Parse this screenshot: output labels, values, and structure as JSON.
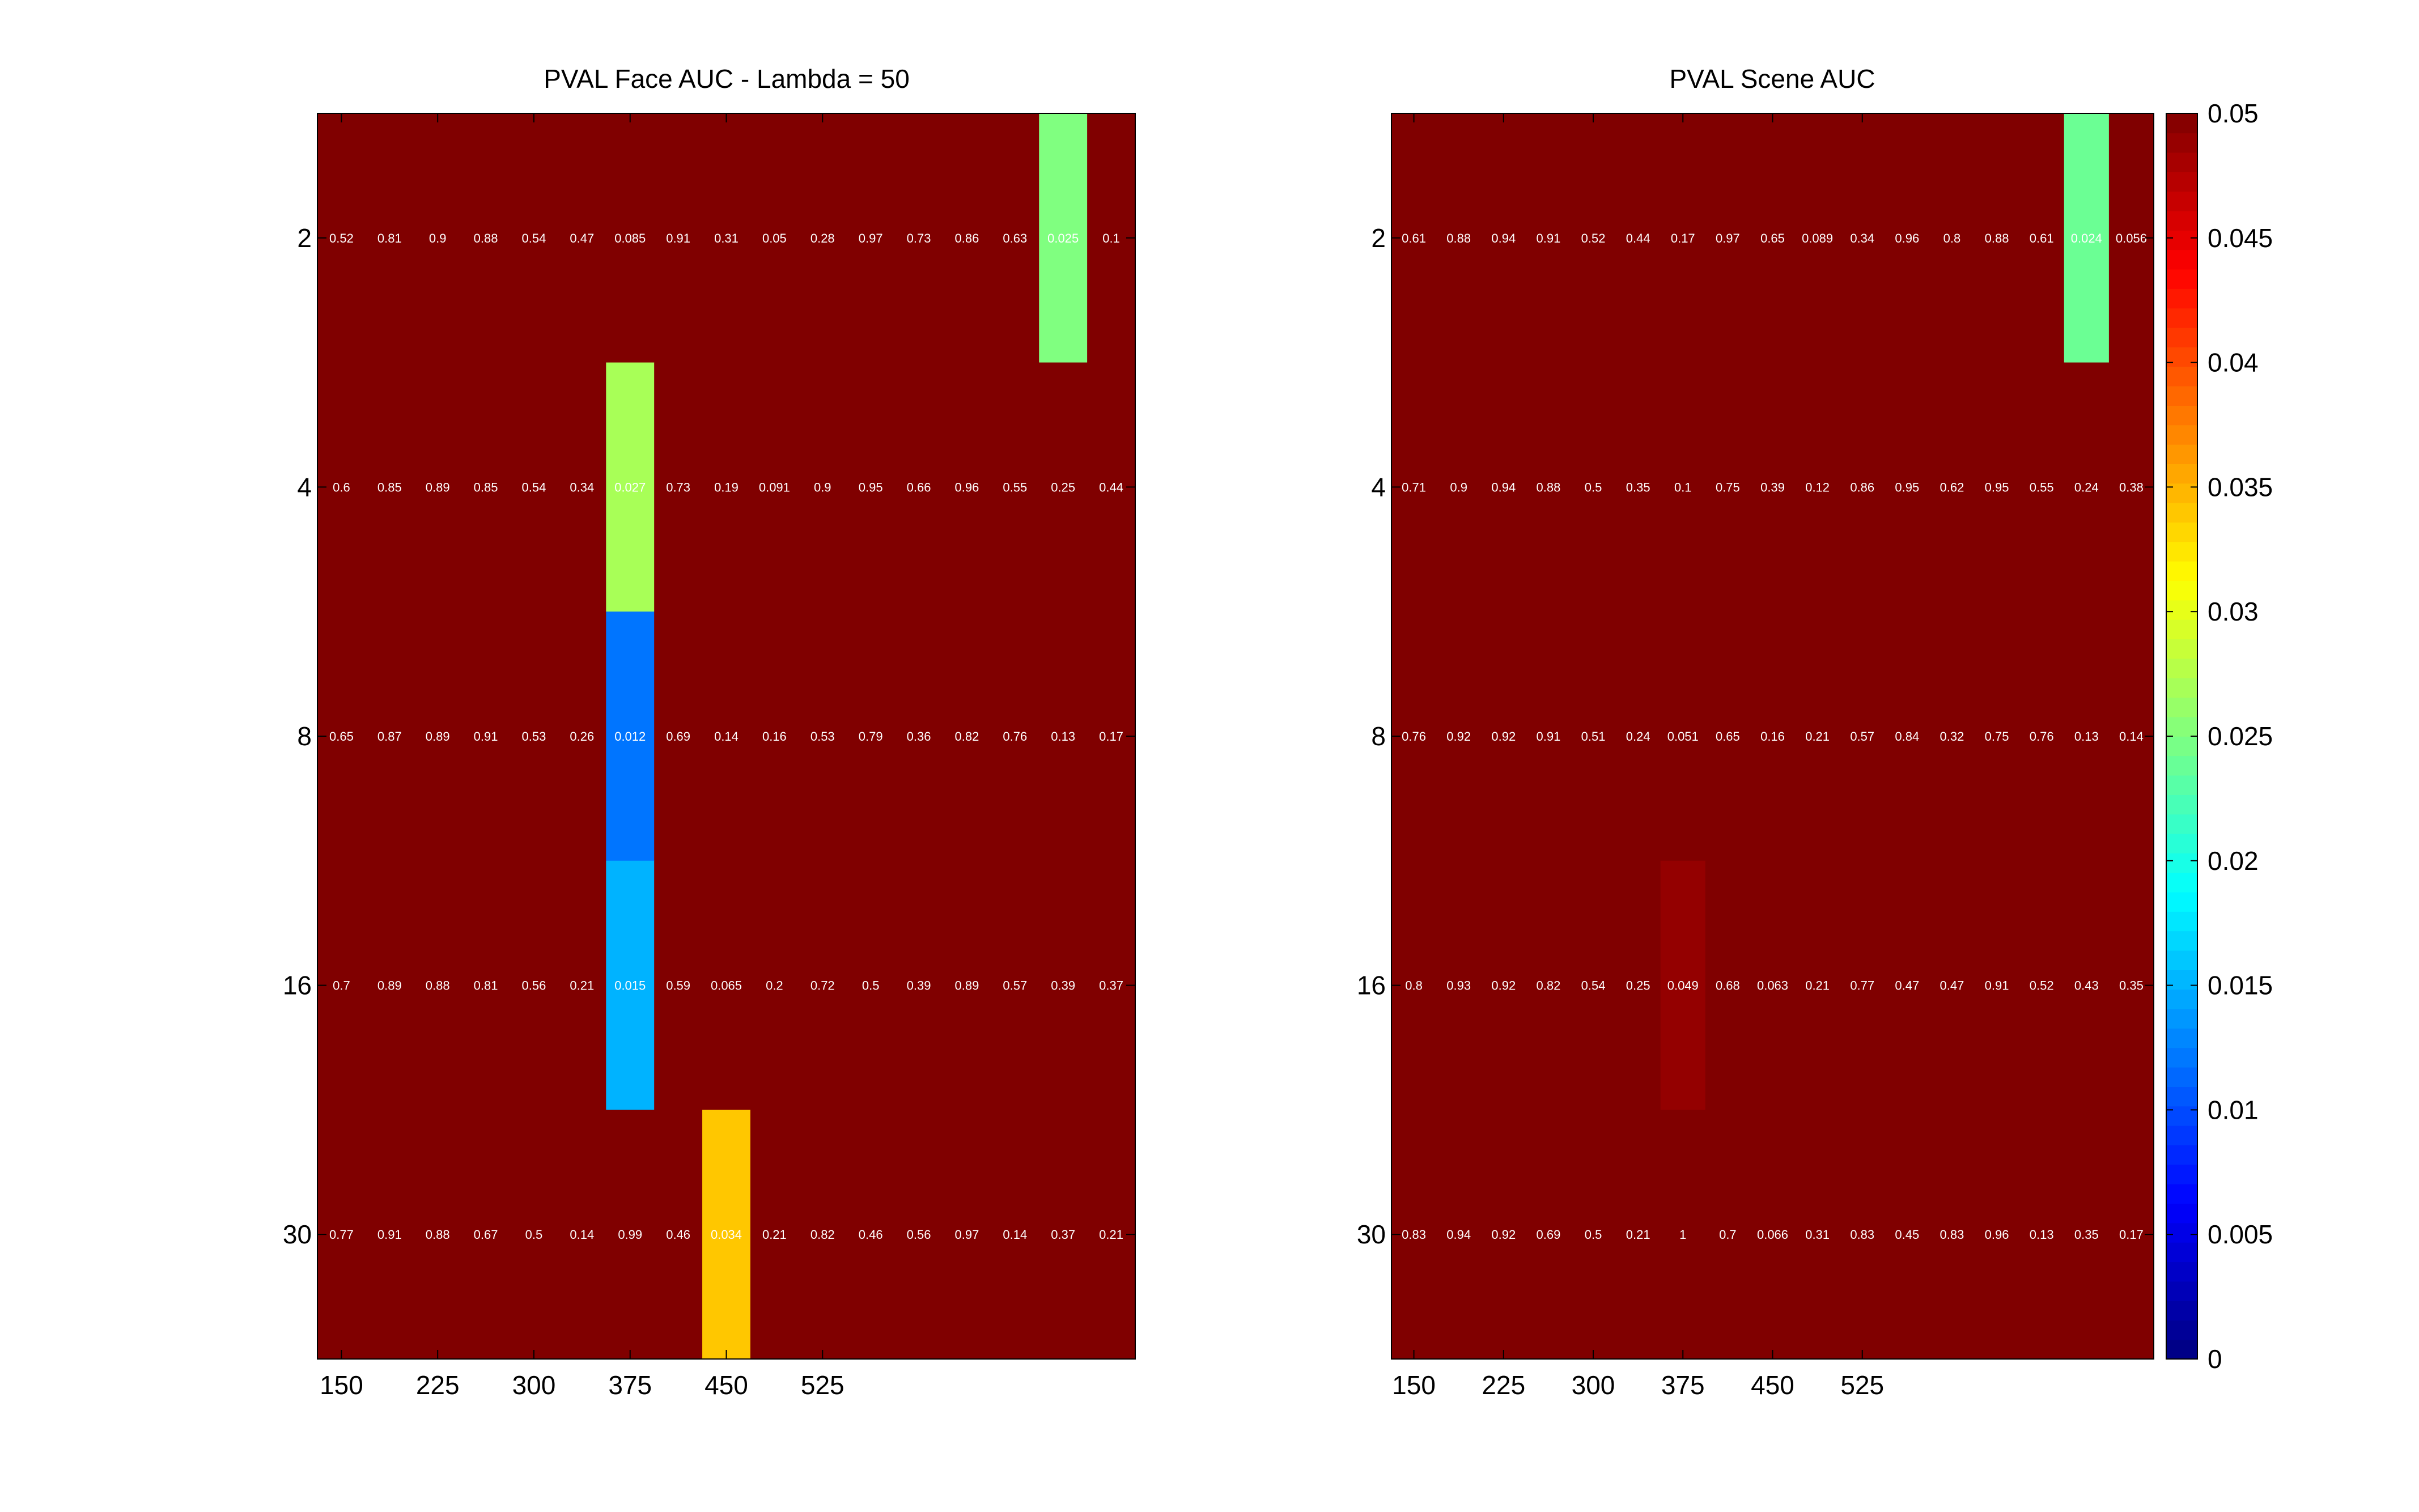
{
  "chart_data": [
    {
      "type": "heatmap",
      "title": "PVAL Face AUC - Lambda = 50",
      "x": [
        150,
        187.5,
        225,
        262.5,
        300,
        337.5,
        375,
        412.5,
        450,
        487.5,
        525,
        562.5,
        600,
        637.5,
        675,
        712.5,
        750
      ],
      "xticks": [
        "150",
        "225",
        "300",
        "375",
        "450",
        "525"
      ],
      "y": [
        "2",
        "4",
        "8",
        "16",
        "30"
      ],
      "value_clip": 0.05,
      "values": [
        [
          0.52,
          0.81,
          0.9,
          0.88,
          0.54,
          0.47,
          0.085,
          0.91,
          0.31,
          0.05,
          0.28,
          0.97,
          0.73,
          0.86,
          0.63,
          0.025,
          0.1
        ],
        [
          0.6,
          0.85,
          0.89,
          0.85,
          0.54,
          0.34,
          0.027,
          0.73,
          0.19,
          0.091,
          0.9,
          0.95,
          0.66,
          0.96,
          0.55,
          0.25,
          0.44
        ],
        [
          0.65,
          0.87,
          0.89,
          0.91,
          0.53,
          0.26,
          0.012,
          0.69,
          0.14,
          0.16,
          0.53,
          0.79,
          0.36,
          0.82,
          0.76,
          0.13,
          0.17
        ],
        [
          0.7,
          0.89,
          0.88,
          0.81,
          0.56,
          0.21,
          0.015,
          0.59,
          0.065,
          0.2,
          0.72,
          0.5,
          0.39,
          0.89,
          0.57,
          0.39,
          0.37
        ],
        [
          0.77,
          0.91,
          0.88,
          0.67,
          0.5,
          0.14,
          0.99,
          0.46,
          0.034,
          0.21,
          0.82,
          0.46,
          0.56,
          0.97,
          0.14,
          0.37,
          0.21
        ]
      ]
    },
    {
      "type": "heatmap",
      "title": "PVAL Scene AUC",
      "x": [
        150,
        187.5,
        225,
        262.5,
        300,
        337.5,
        375,
        412.5,
        450,
        487.5,
        525,
        562.5,
        600,
        637.5,
        675,
        712.5,
        750
      ],
      "xticks": [
        "150",
        "225",
        "300",
        "375",
        "450",
        "525"
      ],
      "y": [
        "2",
        "4",
        "8",
        "16",
        "30"
      ],
      "value_clip": 0.05,
      "values": [
        [
          0.61,
          0.88,
          0.94,
          0.91,
          0.52,
          0.44,
          0.17,
          0.97,
          0.65,
          0.089,
          0.34,
          0.96,
          0.8,
          0.88,
          0.61,
          0.024,
          0.056
        ],
        [
          0.71,
          0.9,
          0.94,
          0.88,
          0.5,
          0.35,
          0.1,
          0.75,
          0.39,
          0.12,
          0.86,
          0.95,
          0.62,
          0.95,
          0.55,
          0.24,
          0.38
        ],
        [
          0.76,
          0.92,
          0.92,
          0.91,
          0.51,
          0.24,
          0.051,
          0.65,
          0.16,
          0.21,
          0.57,
          0.84,
          0.32,
          0.75,
          0.76,
          0.13,
          0.14
        ],
        [
          0.8,
          0.93,
          0.92,
          0.82,
          0.54,
          0.25,
          0.049,
          0.68,
          0.063,
          0.21,
          0.77,
          0.47,
          0.47,
          0.91,
          0.52,
          0.43,
          0.35
        ],
        [
          0.83,
          0.94,
          0.92,
          0.69,
          0.5,
          0.21,
          1,
          0.7,
          0.066,
          0.31,
          0.83,
          0.45,
          0.83,
          0.96,
          0.13,
          0.35,
          0.17
        ]
      ]
    }
  ],
  "colorbar": {
    "colormap": "jet",
    "range": [
      0,
      0.05
    ],
    "ticks": [
      "0",
      "0.005",
      "0.01",
      "0.015",
      "0.02",
      "0.025",
      "0.03",
      "0.035",
      "0.04",
      "0.045",
      "0.05"
    ]
  }
}
